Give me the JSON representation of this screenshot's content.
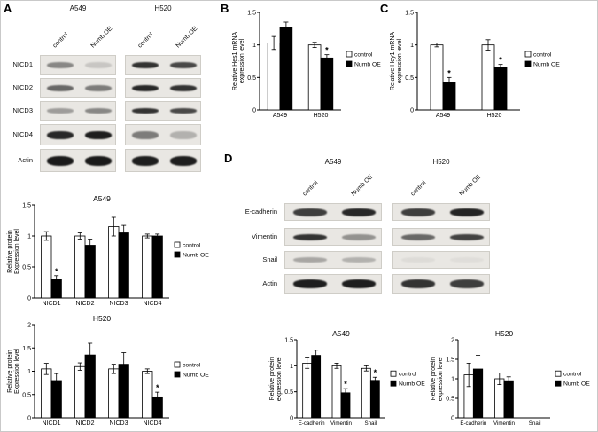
{
  "panels": {
    "a": {
      "label": "A"
    },
    "b": {
      "label": "B"
    },
    "c": {
      "label": "C"
    },
    "d": {
      "label": "D"
    }
  },
  "colors": {
    "control": "#ffffff",
    "numb_oe": "#000000",
    "axis": "#000000"
  },
  "blots": {
    "a": {
      "groups": [
        "A549",
        "H520"
      ],
      "lanes": [
        "control",
        "Numb OE"
      ],
      "rows": [
        {
          "label": "NICD1",
          "bands": [
            0.45,
            0.15,
            0.85,
            0.75
          ],
          "band_h": 7
        },
        {
          "label": "NICD2",
          "bands": [
            0.6,
            0.5,
            0.9,
            0.85
          ],
          "band_h": 7
        },
        {
          "label": "NICD3",
          "bands": [
            0.35,
            0.45,
            0.85,
            0.75
          ],
          "band_h": 6
        },
        {
          "label": "NICD4",
          "bands": [
            0.9,
            0.95,
            0.5,
            0.25
          ],
          "band_h": 9
        },
        {
          "label": "Actin",
          "bands": [
            0.97,
            0.97,
            0.95,
            0.95
          ],
          "band_h": 11
        }
      ]
    },
    "d": {
      "groups": [
        "A549",
        "H520"
      ],
      "lanes": [
        "control",
        "Numb OE"
      ],
      "rows": [
        {
          "label": "E-cadherin",
          "bands": [
            0.8,
            0.9,
            0.8,
            0.92
          ],
          "band_h": 9
        },
        {
          "label": "Vimentin",
          "bands": [
            0.85,
            0.4,
            0.6,
            0.78
          ],
          "band_h": 7
        },
        {
          "label": "Snail",
          "bands": [
            0.3,
            0.25,
            0.05,
            0.04
          ],
          "band_h": 6
        },
        {
          "label": "Actin",
          "bands": [
            0.95,
            0.95,
            0.85,
            0.8
          ],
          "band_h": 10
        }
      ]
    }
  },
  "chart_data": [
    {
      "id": "a_a549",
      "type": "bar",
      "title": "A549",
      "ylabel_lines": [
        "Relative protein",
        "Expression level"
      ],
      "categories": [
        "NICD1",
        "NICD2",
        "NICD3",
        "NICD4"
      ],
      "ylim": [
        0,
        1.5
      ],
      "yticks": [
        0,
        0.5,
        1,
        1.5
      ],
      "legend_position": "right",
      "series": [
        {
          "name": "control",
          "color": "#ffffff",
          "values": [
            1.0,
            1.0,
            1.15,
            1.0
          ],
          "err": [
            0.07,
            0.05,
            0.15,
            0.03
          ],
          "sig": [
            "",
            "",
            "",
            ""
          ]
        },
        {
          "name": "Numb OE",
          "color": "#000000",
          "values": [
            0.3,
            0.85,
            1.05,
            1.0
          ],
          "err": [
            0.06,
            0.1,
            0.12,
            0.03
          ],
          "sig": [
            "*",
            "",
            "",
            ""
          ]
        }
      ]
    },
    {
      "id": "a_h520",
      "type": "bar",
      "title": "H520",
      "ylabel_lines": [
        "Relative protein",
        "Expression level"
      ],
      "categories": [
        "NICD1",
        "NICD2",
        "NICD3",
        "NICD4"
      ],
      "ylim": [
        0,
        2
      ],
      "yticks": [
        0,
        0.5,
        1,
        1.5,
        2
      ],
      "legend_position": "right",
      "series": [
        {
          "name": "control",
          "color": "#ffffff",
          "values": [
            1.05,
            1.1,
            1.05,
            1.0
          ],
          "err": [
            0.12,
            0.08,
            0.1,
            0.05
          ],
          "sig": [
            "",
            "",
            "",
            ""
          ]
        },
        {
          "name": "Numb OE",
          "color": "#000000",
          "values": [
            0.8,
            1.35,
            1.15,
            0.45
          ],
          "err": [
            0.15,
            0.25,
            0.25,
            0.1
          ],
          "sig": [
            "",
            "",
            "",
            "*"
          ]
        }
      ]
    },
    {
      "id": "b",
      "type": "bar",
      "title": "",
      "ylabel_lines": [
        "Relative Hes1 mRNA",
        "expression level"
      ],
      "categories": [
        "A549",
        "H520"
      ],
      "ylim": [
        0,
        1.5
      ],
      "yticks": [
        0,
        0.5,
        1,
        1.5
      ],
      "legend_position": "right",
      "series": [
        {
          "name": "control",
          "color": "#ffffff",
          "values": [
            1.03,
            1.0
          ],
          "err": [
            0.1,
            0.04
          ],
          "sig": [
            "",
            ""
          ]
        },
        {
          "name": "Numb OE",
          "color": "#000000",
          "values": [
            1.27,
            0.8
          ],
          "err": [
            0.08,
            0.05
          ],
          "sig": [
            "",
            "*"
          ]
        }
      ]
    },
    {
      "id": "c",
      "type": "bar",
      "title": "",
      "ylabel_lines": [
        "Relative Hey1 mRNA",
        "expression level"
      ],
      "categories": [
        "A549",
        "H520"
      ],
      "ylim": [
        0,
        1.5
      ],
      "yticks": [
        0,
        0.5,
        1,
        1.5
      ],
      "legend_position": "right",
      "series": [
        {
          "name": "control",
          "color": "#ffffff",
          "values": [
            1.0,
            1.0
          ],
          "err": [
            0.03,
            0.08
          ],
          "sig": [
            "",
            ""
          ]
        },
        {
          "name": "Numb OE",
          "color": "#000000",
          "values": [
            0.42,
            0.65
          ],
          "err": [
            0.08,
            0.05
          ],
          "sig": [
            "*",
            "*"
          ]
        }
      ]
    },
    {
      "id": "d_a549",
      "type": "bar",
      "title": "A549",
      "ylabel_lines": [
        "Relative protein",
        "expression level"
      ],
      "categories": [
        "E-cadherin",
        "Vimentin",
        "Snail"
      ],
      "ylim": [
        0,
        1.5
      ],
      "yticks": [
        0,
        0.5,
        1,
        1.5
      ],
      "legend_position": "right",
      "series": [
        {
          "name": "control",
          "color": "#ffffff",
          "values": [
            1.05,
            1.0,
            0.95
          ],
          "err": [
            0.1,
            0.05,
            0.05
          ],
          "sig": [
            "",
            "",
            ""
          ]
        },
        {
          "name": "Numb OE",
          "color": "#000000",
          "values": [
            1.2,
            0.48,
            0.72
          ],
          "err": [
            0.1,
            0.08,
            0.06
          ],
          "sig": [
            "",
            "*",
            "*"
          ]
        }
      ]
    },
    {
      "id": "d_h520",
      "type": "bar",
      "title": "H520",
      "ylabel_lines": [
        "Relative protein",
        "expression level"
      ],
      "categories": [
        "E-cadherin",
        "Vimentin",
        "Snail"
      ],
      "ylim": [
        0,
        2
      ],
      "yticks": [
        0,
        0.5,
        1,
        1.5,
        2
      ],
      "legend_position": "right",
      "series": [
        {
          "name": "control",
          "color": "#ffffff",
          "values": [
            1.1,
            1.0,
            null
          ],
          "err": [
            0.3,
            0.15,
            null
          ],
          "sig": [
            "",
            "",
            ""
          ]
        },
        {
          "name": "Numb OE",
          "color": "#000000",
          "values": [
            1.25,
            0.95,
            null
          ],
          "err": [
            0.35,
            0.1,
            null
          ],
          "sig": [
            "",
            "",
            ""
          ]
        }
      ]
    }
  ]
}
